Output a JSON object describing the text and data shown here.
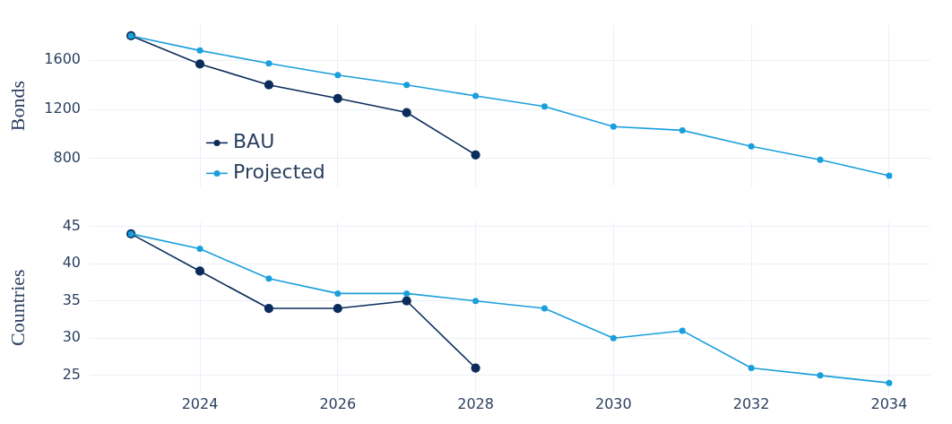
{
  "chart_data": [
    {
      "type": "line",
      "ylabel": "Bonds",
      "x": [
        2023,
        2024,
        2025,
        2026,
        2027,
        2028,
        2029,
        2030,
        2031,
        2032,
        2033,
        2034
      ],
      "xlim": [
        2022.4,
        2034.6
      ],
      "xticks": [
        2024,
        2026,
        2028,
        2030,
        2032,
        2034
      ],
      "ylim": [
        570,
        1890
      ],
      "yticks": [
        800,
        1200,
        1600
      ],
      "tick_labels": "y",
      "grid": true,
      "legend": "bottom left",
      "marker": "circle",
      "line_style": "solid",
      "series": [
        {
          "name": "BAU",
          "color": "#0b2c5b",
          "values": [
            1800,
            1570,
            1400,
            1290,
            1175,
            830,
            null,
            null,
            null,
            null,
            null,
            null
          ]
        },
        {
          "name": "Projected",
          "color": "#1a9fdb",
          "values": [
            1800,
            1680,
            1575,
            1480,
            1400,
            1310,
            1225,
            1060,
            1030,
            900,
            790,
            660
          ]
        }
      ]
    },
    {
      "type": "line",
      "ylabel": "Countries",
      "x": [
        2023,
        2024,
        2025,
        2026,
        2027,
        2028,
        2029,
        2030,
        2031,
        2032,
        2033,
        2034
      ],
      "xlim": [
        2022.4,
        2034.6
      ],
      "xticks": [
        2024,
        2026,
        2028,
        2030,
        2032,
        2034
      ],
      "ylim": [
        22.6,
        45.6
      ],
      "yticks": [
        25,
        30,
        35,
        40,
        45
      ],
      "grid": true,
      "marker": "circle",
      "line_style": "solid",
      "series": [
        {
          "color": "#0b2c5b",
          "values": [
            44,
            39,
            34,
            34,
            35,
            26,
            null,
            null,
            null,
            null,
            null,
            null
          ]
        },
        {
          "color": "#1a9fdb",
          "values": [
            44,
            42,
            38,
            36,
            36,
            35,
            34,
            30,
            31,
            26,
            25,
            24
          ]
        }
      ]
    }
  ]
}
